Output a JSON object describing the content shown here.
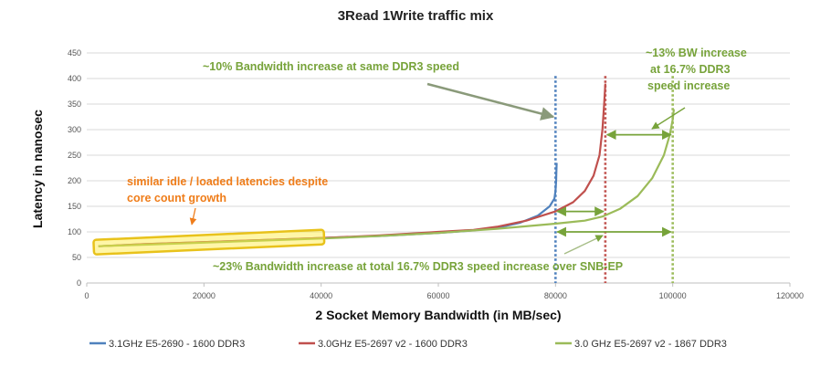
{
  "chart_data": {
    "type": "line",
    "title": "3Read 1Write traffic mix",
    "xlabel": "2 Socket Memory Bandwidth (in MB/sec)",
    "ylabel": "Latency in nanosec",
    "xlim": [
      0,
      120000
    ],
    "ylim": [
      0,
      450
    ],
    "xticks": [
      0,
      20000,
      40000,
      60000,
      80000,
      100000,
      120000
    ],
    "yticks": [
      0,
      50,
      100,
      150,
      200,
      250,
      300,
      350,
      400,
      450
    ],
    "grid": "horizontal",
    "legend_position": "bottom",
    "series": [
      {
        "name": "3.1GHz E5-2690 - 1600 DDR3",
        "color": "#4f81bd",
        "x": [
          2000,
          10000,
          20000,
          30000,
          40000,
          50000,
          60000,
          65000,
          70000,
          74000,
          77000,
          79000,
          79800,
          80000,
          80100,
          80150,
          80200
        ],
        "y": [
          72,
          76,
          80,
          84,
          88,
          92,
          98,
          102,
          108,
          118,
          132,
          150,
          165,
          180,
          200,
          220,
          235
        ]
      },
      {
        "name": "3.0GHz E5-2697 v2 - 1600 DDR3",
        "color": "#c0504d",
        "x": [
          2000,
          10000,
          20000,
          30000,
          40000,
          50000,
          60000,
          66000,
          70000,
          75000,
          80000,
          83000,
          85000,
          86500,
          87500,
          88000,
          88300,
          88500
        ],
        "y": [
          72,
          76,
          80,
          84,
          88,
          93,
          100,
          104,
          110,
          122,
          140,
          158,
          180,
          210,
          250,
          300,
          350,
          390
        ]
      },
      {
        "name": "3.0 GHz E5-2697 v2 - 1867 DDR3",
        "color": "#9bbb59",
        "x": [
          2000,
          10000,
          20000,
          30000,
          40000,
          50000,
          60000,
          70000,
          80000,
          85000,
          88000,
          91000,
          94000,
          96500,
          98500,
          99500,
          100000,
          100200
        ],
        "y": [
          72,
          75,
          79,
          83,
          87,
          92,
          98,
          106,
          116,
          122,
          130,
          145,
          170,
          205,
          250,
          290,
          320,
          340
        ]
      }
    ],
    "vlines": [
      {
        "x": 80000,
        "color": "#4f81bd"
      },
      {
        "x": 88500,
        "color": "#c0504d"
      },
      {
        "x": 100000,
        "color": "#9bbb59"
      }
    ],
    "annotations": [
      {
        "text": "~10% Bandwidth increase at same DDR3 speed",
        "color": "#77a33a"
      },
      {
        "text": "~13% BW increase",
        "color": "#77a33a"
      },
      {
        "text": "at 16.7% DDR3",
        "color": "#77a33a"
      },
      {
        "text": "speed increase",
        "color": "#77a33a"
      },
      {
        "text": "similar idle / loaded latencies despite",
        "color": "#ef7d1a"
      },
      {
        "text": "core count growth",
        "color": "#ef7d1a"
      },
      {
        "text": "~23% Bandwidth increase at total 16.7% DDR3 speed increase over SNB-EP",
        "color": "#77a33a"
      }
    ]
  }
}
